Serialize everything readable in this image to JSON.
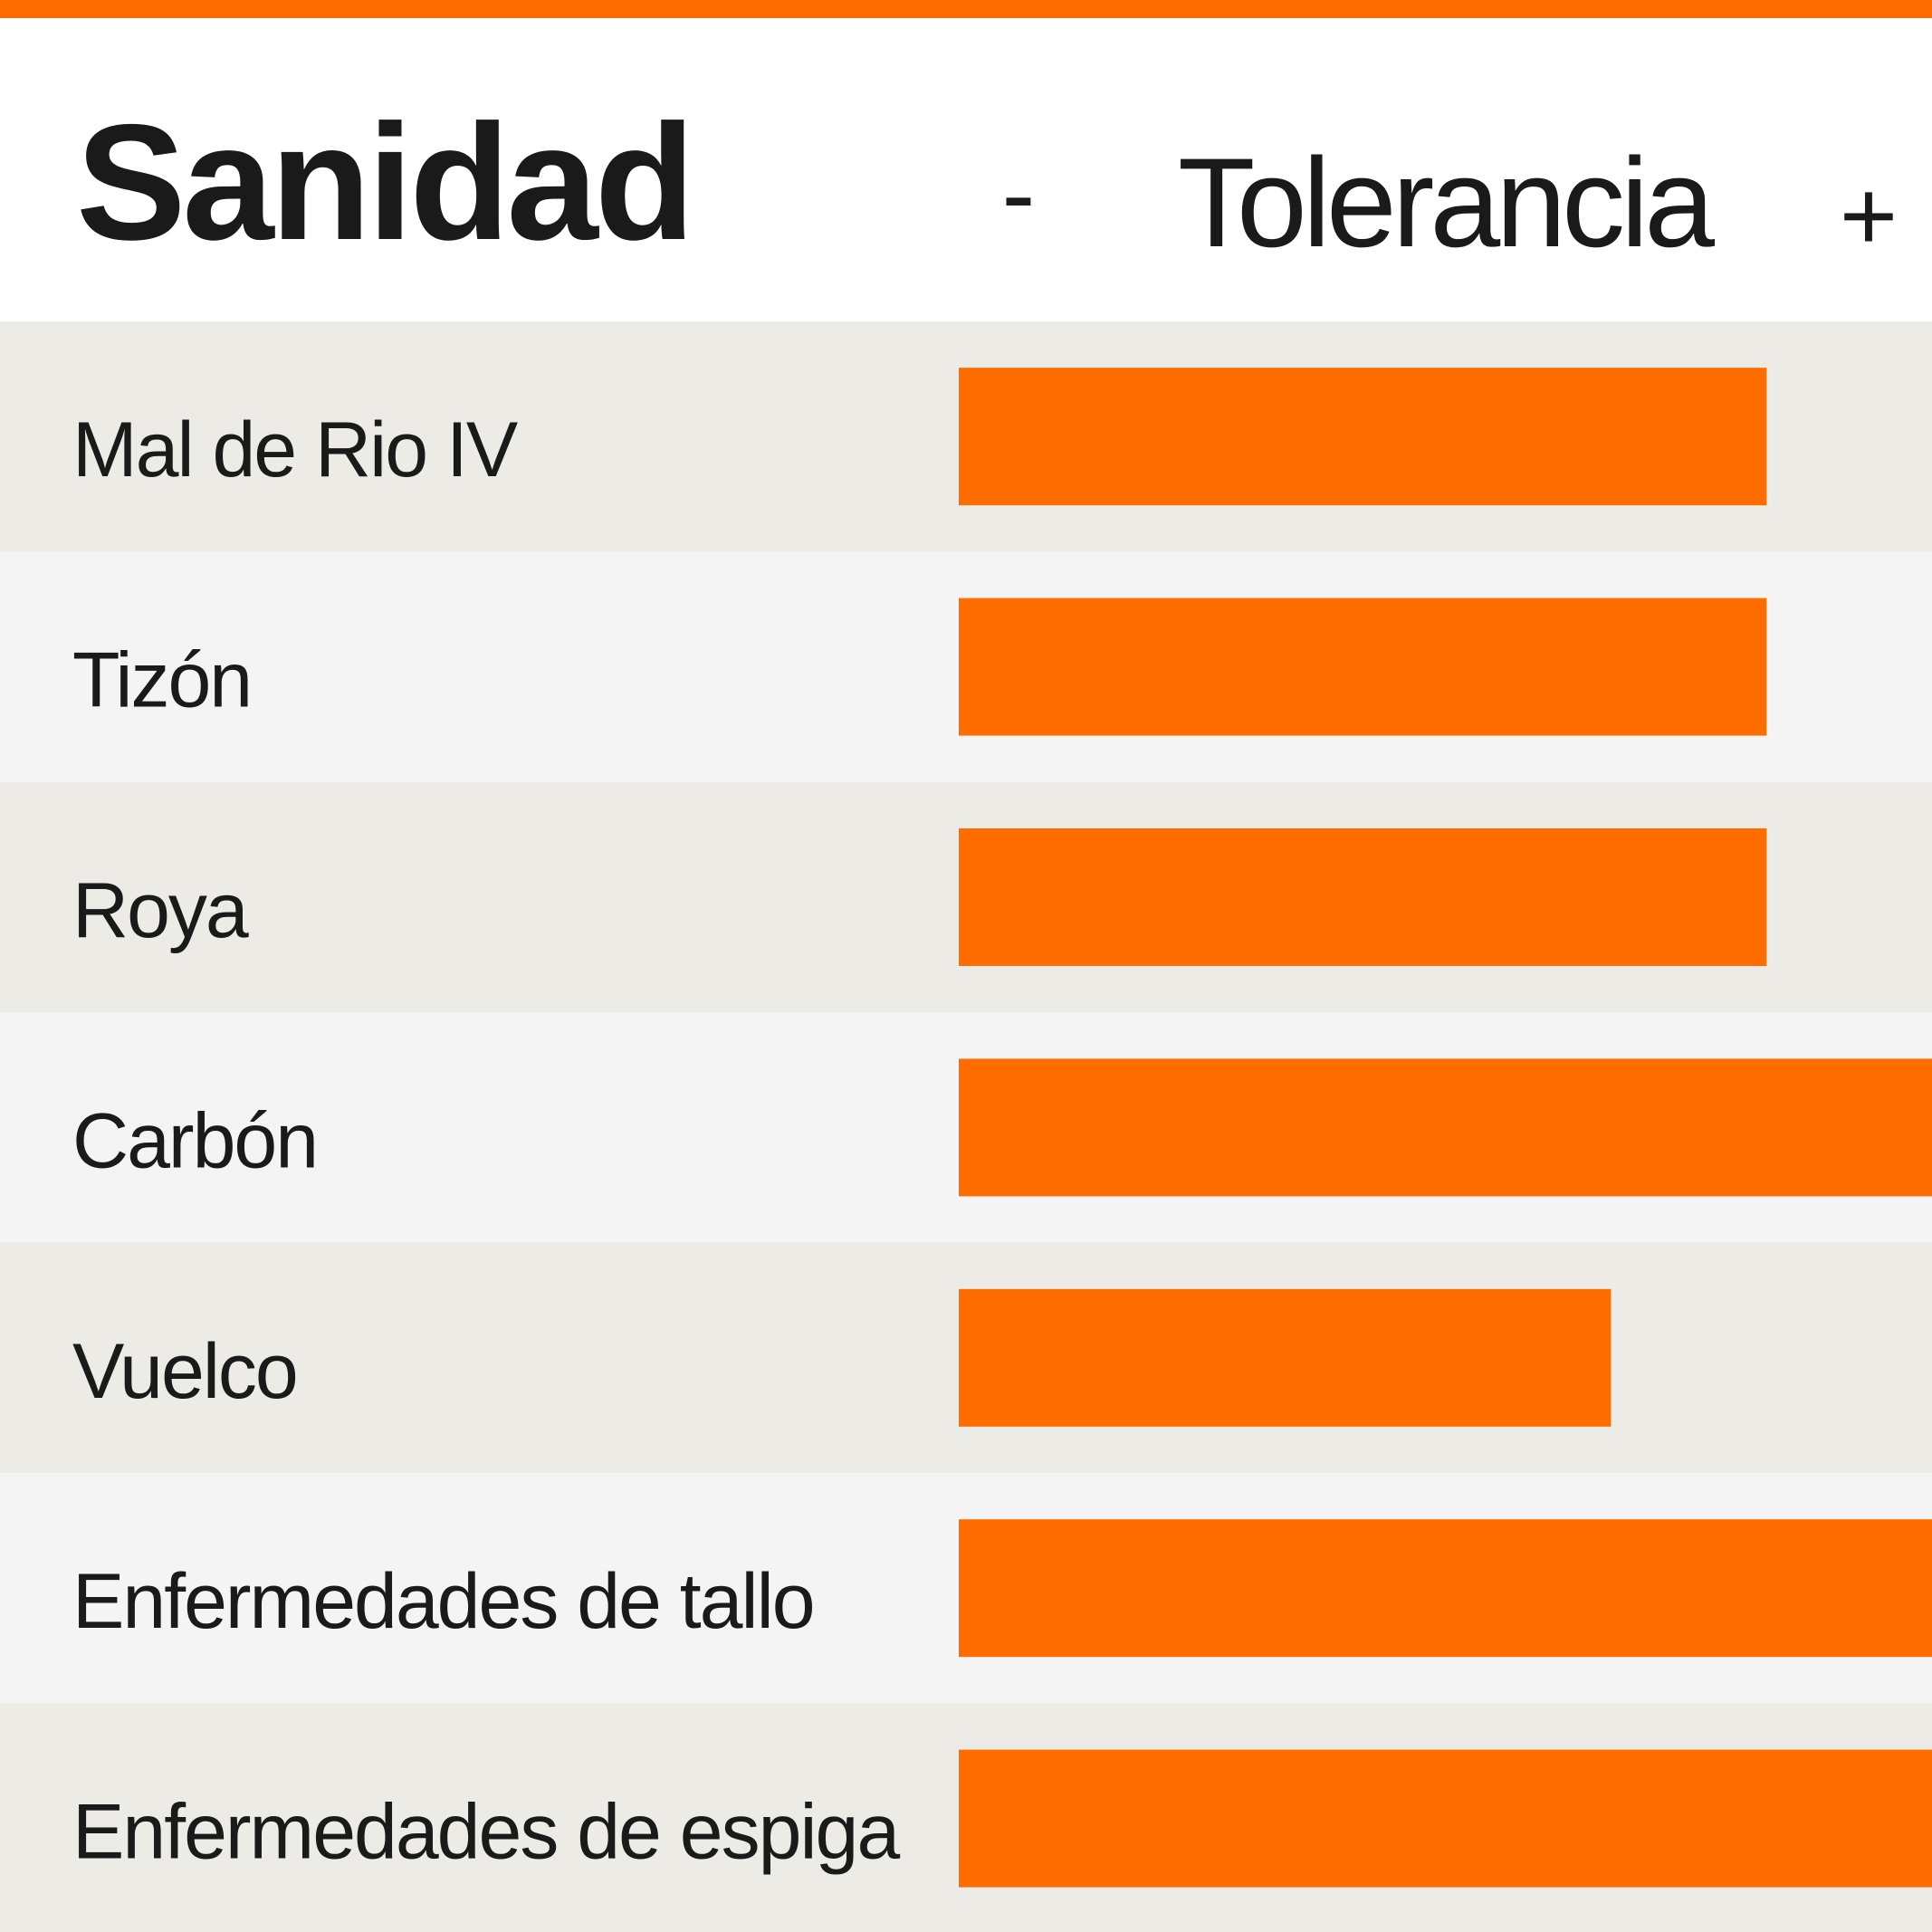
{
  "colors": {
    "accent": "#ff6c00",
    "row_odd": "#ecebe5",
    "row_even": "#f4f4f4",
    "text": "#1a1a1a"
  },
  "chart_data": {
    "type": "bar",
    "orientation": "horizontal",
    "title": "Sanidad",
    "axis_label": "Tolerancia",
    "axis_min_label": "-",
    "axis_max_label": "+",
    "categories": [
      "Mal de Rio IV",
      "Tizón",
      "Roya",
      "Carbón",
      "Vuelco",
      "Enfermedades de tallo",
      "Enfermedades de espiga"
    ],
    "values": [
      8.3,
      8.3,
      8.3,
      10,
      6.7,
      10,
      10
    ],
    "xlim": [
      0,
      10
    ],
    "grid": false,
    "legend": "none"
  }
}
